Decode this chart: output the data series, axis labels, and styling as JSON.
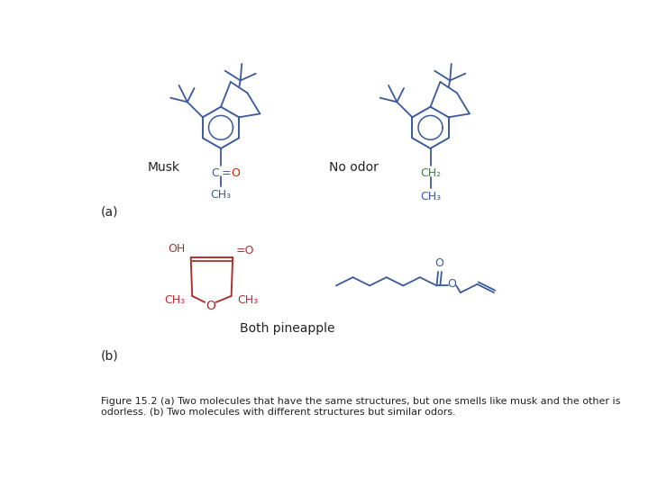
{
  "caption": "Figure 15.2 (a) Two molecules that have the same structures, but one smells like musk and the other is\nodorless. (b) Two molecules with different structures but similar odors.",
  "caption_fontsize": 8,
  "bg_color": "#ffffff",
  "panel_a_label": "(a)",
  "panel_b_label": "(b)",
  "musk_label": "Musk",
  "no_odor_label": "No odor",
  "both_pineapple_label": "Both pineapple",
  "blue_color": "#3a5a9c",
  "red_color": "#cc2200",
  "green_color": "#3a8a3a",
  "black_color": "#222222",
  "dark_red": "#b03030",
  "ch2_color": "#4a7a4a"
}
